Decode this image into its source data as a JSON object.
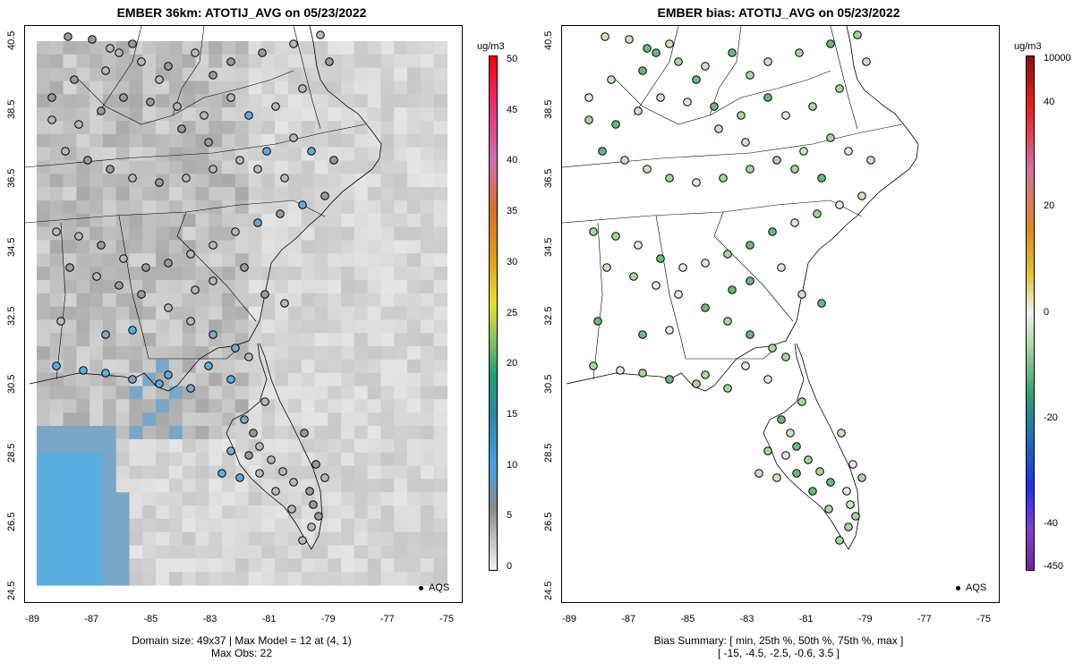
{
  "left": {
    "title": "EMBER 36km: ATOTIJ_AVG on 05/23/2022",
    "footer_line1": "Domain size: 49x37 | Max Model = 12 at (4, 1)",
    "footer_line2": "Max Obs: 22",
    "units": "ug/m3",
    "colorbar_ticks": [
      "50",
      "45",
      "40",
      "35",
      "30",
      "25",
      "20",
      "15",
      "10",
      "5",
      "0"
    ],
    "legend_label": "AQS"
  },
  "right": {
    "title": "EMBER bias: ATOTIJ_AVG on 05/23/2022",
    "footer_line1": "Bias Summary: [ min, 25th %, 50th %, 75th %, max ]",
    "footer_line2": "[ -15,   -4.5,   -2.5,   -0.6,   3.5 ]",
    "units": "ug/m3",
    "colorbar_ticks": [
      "10000",
      "40",
      "20",
      "0",
      "-20",
      "-40",
      "-450"
    ],
    "legend_label": "AQS"
  },
  "axes": {
    "y_ticks": [
      "40.5",
      "38.5",
      "36.5",
      "34.5",
      "32.5",
      "30.5",
      "28.5",
      "26.5",
      "24.5"
    ],
    "x_ticks": [
      "-89",
      "-87",
      "-85",
      "-83",
      "-81",
      "-79",
      "-77",
      "-75"
    ]
  },
  "colors": {
    "model_gray_dark": "#9c9c9c",
    "model_gray_light": "#e2e2e2",
    "model_blue": "#5aaee0",
    "bias_green": "#a8d4a0"
  }
}
